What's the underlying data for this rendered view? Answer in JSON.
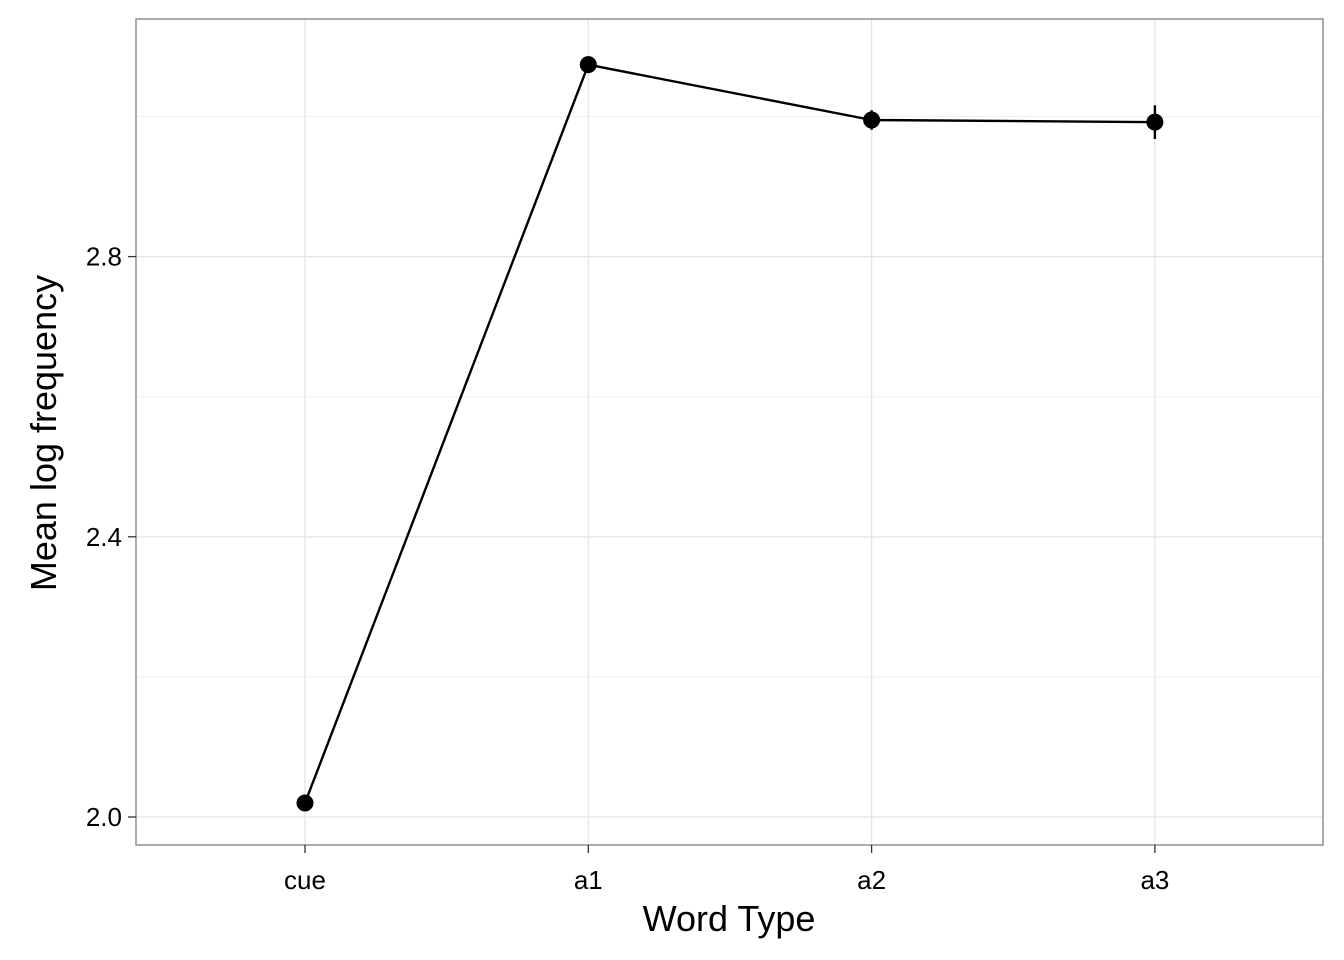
{
  "chart_data": {
    "type": "line",
    "title": "",
    "xlabel": "Word Type",
    "ylabel": "Mean log frequency",
    "categories": [
      "cue",
      "a1",
      "a2",
      "a3"
    ],
    "series": [
      {
        "values": [
          2.02,
          3.074,
          2.995,
          2.992
        ],
        "error": [
          0.008,
          0.01,
          0.014,
          0.024
        ]
      }
    ],
    "ylim": [
      1.96,
      3.14
    ],
    "yticks": [
      2.0,
      2.4,
      2.8
    ],
    "ytick_labels": [
      "2.0",
      "2.4",
      "2.8"
    ],
    "grid": true,
    "legend": "none",
    "colors": {
      "line": "#000000",
      "point": "#000000",
      "panel_border": "#7f7f7f",
      "grid_major": "#e5e5e5",
      "grid_minor": "#f2f2f2"
    }
  }
}
